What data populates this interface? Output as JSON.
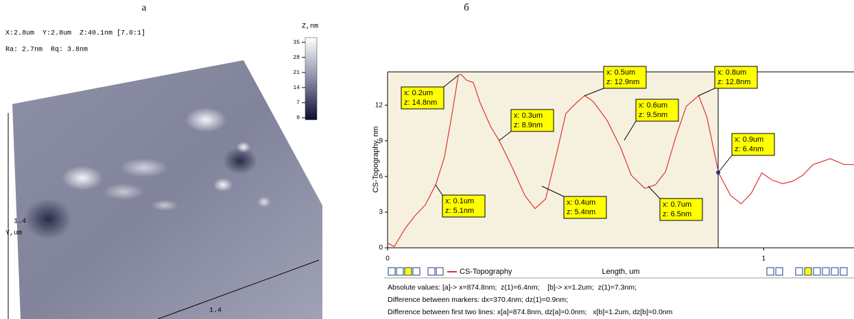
{
  "afm_image": {
    "panel_label": "а",
    "info": [
      "X:2.8um  Y:2.8um  Z:40.1nm [7.0:1]",
      "Ra: 2.7nm  Rq: 3.8nm"
    ],
    "colorbar_title": "Z,nm",
    "colorbar_ticks": [
      35,
      28,
      21,
      14,
      7,
      0
    ],
    "y_axis_tick": "1.4",
    "y_axis_label": "Y,um",
    "x_axis_tick": "1.4"
  },
  "chart_data": {
    "type": "line",
    "panel_label": "б",
    "ylabel": "CS-Topography, nm",
    "xlabel": "Length, um",
    "xlim": [
      0,
      1.24
    ],
    "ylim": [
      0,
      14.8
    ],
    "xticks": [
      0,
      1
    ],
    "yticks": [
      0,
      3,
      6,
      9,
      12
    ],
    "series": [
      {
        "name": "CS-Topography",
        "color": "#e03030",
        "x": [
          0,
          0.018,
          0.046,
          0.073,
          0.1,
          0.128,
          0.151,
          0.17,
          0.188,
          0.195,
          0.21,
          0.228,
          0.246,
          0.274,
          0.297,
          0.328,
          0.365,
          0.392,
          0.42,
          0.447,
          0.474,
          0.502,
          0.524,
          0.547,
          0.584,
          0.62,
          0.648,
          0.684,
          0.712,
          0.739,
          0.766,
          0.794,
          0.827,
          0.849,
          0.88,
          0.912,
          0.94,
          0.967,
          0.995,
          1.022,
          1.05,
          1.077,
          1.104,
          1.131,
          1.177,
          1.214,
          1.24
        ],
        "values": [
          0.4,
          0.1,
          1.6,
          2.7,
          3.6,
          5.3,
          7.6,
          11,
          14.5,
          14.6,
          14.1,
          13.9,
          12.2,
          10.2,
          9,
          7,
          4.4,
          3.3,
          4.1,
          7.6,
          11.3,
          12.2,
          12.8,
          12.3,
          10.7,
          8.4,
          6.1,
          5,
          5.3,
          6.4,
          9.3,
          11.9,
          12.8,
          11,
          6.3,
          4.4,
          3.7,
          4.6,
          6.3,
          5.7,
          5.4,
          5.6,
          6.1,
          7,
          7.5,
          7,
          7
        ]
      }
    ],
    "annotations": [
      [
        "x: 0.2um",
        "z: 14.8nm"
      ],
      [
        "x: 0.3um",
        "z: 8.9nm"
      ],
      [
        "x: 0.1um",
        "z: 5.1nm"
      ],
      [
        "x: 0.4um",
        "z: 5.4nm"
      ],
      [
        "x: 0.5um",
        "z: 12.9nm"
      ],
      [
        "x: 0.6um",
        "z: 9.5nm"
      ],
      [
        "x: 0.7um",
        "z: 6.5nm"
      ],
      [
        "x: 0.8um",
        "z: 12.8nm"
      ],
      [
        "x: 0.9um",
        "z: 6.4nm"
      ]
    ]
  },
  "footer": [
    "Absolute values: [a]-> x=874.8nm;  z(1)=6.4nm;    [b]-> x=1.2um;  z(1)=7.3nm;",
    "Difference between markers: dx=370.4nm; dz(1)=0.9nm;",
    "Difference between first two lines: x[a]=874.8nm, dz[a]=0.0nm;   x[b]=1.2um, dz[b]=0.0nm"
  ]
}
